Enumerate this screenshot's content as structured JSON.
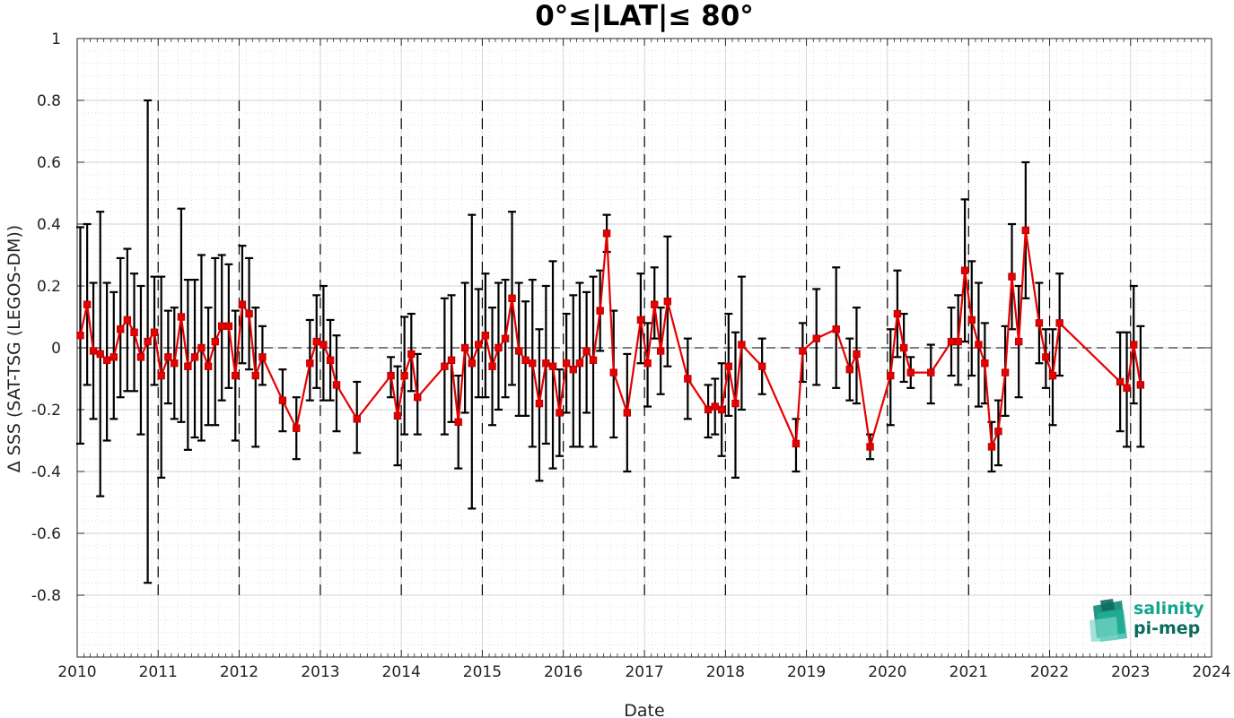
{
  "chart_data": {
    "type": "line",
    "title": "0°≤|LAT|≤ 80°",
    "xlabel": "Date",
    "ylabel": "Δ SSS (SAT-TSG (LEGOS-DM))",
    "xlim": [
      "2010-01-01",
      "2024-01-01"
    ],
    "ylim": [
      -1,
      1
    ],
    "x_ticks": [
      "2010",
      "2011",
      "2012",
      "2013",
      "2014",
      "2015",
      "2016",
      "2017",
      "2018",
      "2019",
      "2020",
      "2021",
      "2022",
      "2023",
      "2024"
    ],
    "y_ticks": [
      "-0.8",
      "-0.6",
      "-0.4",
      "-0.2",
      "0",
      "0.2",
      "0.4",
      "0.6",
      "0.8",
      "1"
    ],
    "grid": true,
    "reference_line_y": 0,
    "year_boundary_lines": true,
    "series": [
      {
        "color": "#e60000",
        "marker": "square",
        "points": [
          {
            "date": "2010-01-15",
            "y": 0.04,
            "lo": -0.31,
            "hi": 0.39
          },
          {
            "date": "2010-02-15",
            "y": 0.14,
            "lo": -0.12,
            "hi": 0.4
          },
          {
            "date": "2010-03-15",
            "y": -0.01,
            "lo": -0.23,
            "hi": 0.21
          },
          {
            "date": "2010-04-15",
            "y": -0.02,
            "lo": -0.48,
            "hi": 0.44
          },
          {
            "date": "2010-05-15",
            "y": -0.04,
            "lo": -0.3,
            "hi": 0.21
          },
          {
            "date": "2010-06-15",
            "y": -0.03,
            "lo": -0.23,
            "hi": 0.18
          },
          {
            "date": "2010-07-15",
            "y": 0.06,
            "lo": -0.16,
            "hi": 0.29
          },
          {
            "date": "2010-08-15",
            "y": 0.09,
            "lo": -0.14,
            "hi": 0.32
          },
          {
            "date": "2010-09-15",
            "y": 0.05,
            "lo": -0.14,
            "hi": 0.24
          },
          {
            "date": "2010-10-15",
            "y": -0.03,
            "lo": -0.28,
            "hi": 0.2
          },
          {
            "date": "2010-11-15",
            "y": 0.02,
            "lo": -0.76,
            "hi": 0.8
          },
          {
            "date": "2010-12-15",
            "y": 0.05,
            "lo": -0.12,
            "hi": 0.23
          },
          {
            "date": "2011-01-15",
            "y": -0.09,
            "lo": -0.42,
            "hi": 0.23
          },
          {
            "date": "2011-02-15",
            "y": -0.03,
            "lo": -0.18,
            "hi": 0.12
          },
          {
            "date": "2011-03-15",
            "y": -0.05,
            "lo": -0.23,
            "hi": 0.13
          },
          {
            "date": "2011-04-15",
            "y": 0.1,
            "lo": -0.24,
            "hi": 0.45
          },
          {
            "date": "2011-05-15",
            "y": -0.06,
            "lo": -0.33,
            "hi": 0.22
          },
          {
            "date": "2011-06-15",
            "y": -0.03,
            "lo": -0.29,
            "hi": 0.22
          },
          {
            "date": "2011-07-15",
            "y": 0.0,
            "lo": -0.3,
            "hi": 0.3
          },
          {
            "date": "2011-08-15",
            "y": -0.06,
            "lo": -0.25,
            "hi": 0.13
          },
          {
            "date": "2011-09-15",
            "y": 0.02,
            "lo": -0.25,
            "hi": 0.29
          },
          {
            "date": "2011-10-15",
            "y": 0.07,
            "lo": -0.17,
            "hi": 0.3
          },
          {
            "date": "2011-11-15",
            "y": 0.07,
            "lo": -0.13,
            "hi": 0.27
          },
          {
            "date": "2011-12-15",
            "y": -0.09,
            "lo": -0.3,
            "hi": 0.12
          },
          {
            "date": "2012-01-15",
            "y": 0.14,
            "lo": -0.05,
            "hi": 0.33
          },
          {
            "date": "2012-02-15",
            "y": 0.11,
            "lo": -0.07,
            "hi": 0.29
          },
          {
            "date": "2012-03-15",
            "y": -0.09,
            "lo": -0.32,
            "hi": 0.13
          },
          {
            "date": "2012-04-15",
            "y": -0.03,
            "lo": -0.12,
            "hi": 0.07
          },
          {
            "date": "2012-07-15",
            "y": -0.17,
            "lo": -0.27,
            "hi": -0.07
          },
          {
            "date": "2012-09-15",
            "y": -0.26,
            "lo": -0.36,
            "hi": -0.16
          },
          {
            "date": "2012-11-15",
            "y": -0.05,
            "lo": -0.17,
            "hi": 0.09
          },
          {
            "date": "2012-12-15",
            "y": 0.02,
            "lo": -0.13,
            "hi": 0.17
          },
          {
            "date": "2013-01-15",
            "y": 0.01,
            "lo": -0.17,
            "hi": 0.2
          },
          {
            "date": "2013-02-15",
            "y": -0.04,
            "lo": -0.17,
            "hi": 0.09
          },
          {
            "date": "2013-03-15",
            "y": -0.12,
            "lo": -0.27,
            "hi": 0.04
          },
          {
            "date": "2013-06-15",
            "y": -0.23,
            "lo": -0.34,
            "hi": -0.11
          },
          {
            "date": "2013-11-15",
            "y": -0.09,
            "lo": -0.16,
            "hi": -0.03
          },
          {
            "date": "2013-12-15",
            "y": -0.22,
            "lo": -0.38,
            "hi": -0.06
          },
          {
            "date": "2014-01-15",
            "y": -0.09,
            "lo": -0.28,
            "hi": 0.1
          },
          {
            "date": "2014-02-15",
            "y": -0.02,
            "lo": -0.14,
            "hi": 0.11
          },
          {
            "date": "2014-03-15",
            "y": -0.16,
            "lo": -0.28,
            "hi": -0.02
          },
          {
            "date": "2014-07-15",
            "y": -0.06,
            "lo": -0.28,
            "hi": 0.16
          },
          {
            "date": "2014-08-15",
            "y": -0.04,
            "lo": -0.24,
            "hi": 0.17
          },
          {
            "date": "2014-09-15",
            "y": -0.24,
            "lo": -0.39,
            "hi": -0.09
          },
          {
            "date": "2014-10-15",
            "y": 0.0,
            "lo": -0.21,
            "hi": 0.21
          },
          {
            "date": "2014-11-15",
            "y": -0.05,
            "lo": -0.52,
            "hi": 0.43
          },
          {
            "date": "2014-12-15",
            "y": 0.01,
            "lo": -0.16,
            "hi": 0.19
          },
          {
            "date": "2015-01-15",
            "y": 0.04,
            "lo": -0.16,
            "hi": 0.24
          },
          {
            "date": "2015-02-15",
            "y": -0.06,
            "lo": -0.25,
            "hi": 0.13
          },
          {
            "date": "2015-03-15",
            "y": 0.0,
            "lo": -0.2,
            "hi": 0.21
          },
          {
            "date": "2015-04-15",
            "y": 0.03,
            "lo": -0.16,
            "hi": 0.22
          },
          {
            "date": "2015-05-15",
            "y": 0.16,
            "lo": -0.12,
            "hi": 0.44
          },
          {
            "date": "2015-06-15",
            "y": -0.01,
            "lo": -0.22,
            "hi": 0.21
          },
          {
            "date": "2015-07-15",
            "y": -0.04,
            "lo": -0.22,
            "hi": 0.15
          },
          {
            "date": "2015-08-15",
            "y": -0.05,
            "lo": -0.32,
            "hi": 0.22
          },
          {
            "date": "2015-09-15",
            "y": -0.18,
            "lo": -0.43,
            "hi": 0.06
          },
          {
            "date": "2015-10-15",
            "y": -0.05,
            "lo": -0.31,
            "hi": 0.2
          },
          {
            "date": "2015-11-15",
            "y": -0.06,
            "lo": -0.39,
            "hi": 0.28
          },
          {
            "date": "2015-12-15",
            "y": -0.21,
            "lo": -0.35,
            "hi": -0.07
          },
          {
            "date": "2016-01-15",
            "y": -0.05,
            "lo": -0.21,
            "hi": 0.11
          },
          {
            "date": "2016-02-15",
            "y": -0.07,
            "lo": -0.32,
            "hi": 0.17
          },
          {
            "date": "2016-03-15",
            "y": -0.05,
            "lo": -0.32,
            "hi": 0.21
          },
          {
            "date": "2016-04-15",
            "y": -0.01,
            "lo": -0.21,
            "hi": 0.18
          },
          {
            "date": "2016-05-15",
            "y": -0.04,
            "lo": -0.32,
            "hi": 0.23
          },
          {
            "date": "2016-06-15",
            "y": 0.12,
            "lo": -0.01,
            "hi": 0.25
          },
          {
            "date": "2016-07-15",
            "y": 0.37,
            "lo": 0.31,
            "hi": 0.43
          },
          {
            "date": "2016-08-15",
            "y": -0.08,
            "lo": -0.29,
            "hi": 0.12
          },
          {
            "date": "2016-10-15",
            "y": -0.21,
            "lo": -0.4,
            "hi": -0.02
          },
          {
            "date": "2016-12-15",
            "y": 0.09,
            "lo": -0.05,
            "hi": 0.24
          },
          {
            "date": "2017-01-15",
            "y": -0.05,
            "lo": -0.19,
            "hi": 0.08
          },
          {
            "date": "2017-02-15",
            "y": 0.14,
            "lo": 0.03,
            "hi": 0.26
          },
          {
            "date": "2017-03-15",
            "y": -0.01,
            "lo": -0.15,
            "hi": 0.13
          },
          {
            "date": "2017-04-15",
            "y": 0.15,
            "lo": -0.06,
            "hi": 0.36
          },
          {
            "date": "2017-07-15",
            "y": -0.1,
            "lo": -0.23,
            "hi": 0.03
          },
          {
            "date": "2017-10-15",
            "y": -0.2,
            "lo": -0.29,
            "hi": -0.12
          },
          {
            "date": "2017-11-15",
            "y": -0.19,
            "lo": -0.28,
            "hi": -0.1
          },
          {
            "date": "2017-12-15",
            "y": -0.2,
            "lo": -0.35,
            "hi": -0.05
          },
          {
            "date": "2018-01-15",
            "y": -0.06,
            "lo": -0.22,
            "hi": 0.11
          },
          {
            "date": "2018-02-15",
            "y": -0.18,
            "lo": -0.42,
            "hi": 0.05
          },
          {
            "date": "2018-03-15",
            "y": 0.01,
            "lo": -0.2,
            "hi": 0.23
          },
          {
            "date": "2018-06-15",
            "y": -0.06,
            "lo": -0.15,
            "hi": 0.03
          },
          {
            "date": "2018-11-15",
            "y": -0.31,
            "lo": -0.4,
            "hi": -0.23
          },
          {
            "date": "2018-12-15",
            "y": -0.01,
            "lo": -0.11,
            "hi": 0.08
          },
          {
            "date": "2019-02-15",
            "y": 0.03,
            "lo": -0.12,
            "hi": 0.19
          },
          {
            "date": "2019-05-15",
            "y": 0.06,
            "lo": -0.13,
            "hi": 0.26
          },
          {
            "date": "2019-07-15",
            "y": -0.07,
            "lo": -0.17,
            "hi": 0.03
          },
          {
            "date": "2019-08-15",
            "y": -0.02,
            "lo": -0.18,
            "hi": 0.13
          },
          {
            "date": "2019-10-15",
            "y": -0.32,
            "lo": -0.36,
            "hi": -0.28
          },
          {
            "date": "2020-01-15",
            "y": -0.09,
            "lo": -0.25,
            "hi": 0.06
          },
          {
            "date": "2020-02-15",
            "y": 0.11,
            "lo": -0.03,
            "hi": 0.25
          },
          {
            "date": "2020-03-15",
            "y": 0.0,
            "lo": -0.11,
            "hi": 0.11
          },
          {
            "date": "2020-04-15",
            "y": -0.08,
            "lo": -0.13,
            "hi": -0.03
          },
          {
            "date": "2020-07-15",
            "y": -0.08,
            "lo": -0.18,
            "hi": 0.01
          },
          {
            "date": "2020-10-15",
            "y": 0.02,
            "lo": -0.09,
            "hi": 0.13
          },
          {
            "date": "2020-11-15",
            "y": 0.02,
            "lo": -0.12,
            "hi": 0.17
          },
          {
            "date": "2020-12-15",
            "y": 0.25,
            "lo": 0.02,
            "hi": 0.48
          },
          {
            "date": "2021-01-15",
            "y": 0.09,
            "lo": -0.09,
            "hi": 0.28
          },
          {
            "date": "2021-02-15",
            "y": 0.01,
            "lo": -0.19,
            "hi": 0.21
          },
          {
            "date": "2021-03-15",
            "y": -0.05,
            "lo": -0.18,
            "hi": 0.08
          },
          {
            "date": "2021-04-15",
            "y": -0.32,
            "lo": -0.4,
            "hi": -0.24
          },
          {
            "date": "2021-05-15",
            "y": -0.27,
            "lo": -0.38,
            "hi": -0.17
          },
          {
            "date": "2021-06-15",
            "y": -0.08,
            "lo": -0.22,
            "hi": 0.07
          },
          {
            "date": "2021-07-15",
            "y": 0.23,
            "lo": 0.06,
            "hi": 0.4
          },
          {
            "date": "2021-08-15",
            "y": 0.02,
            "lo": -0.16,
            "hi": 0.2
          },
          {
            "date": "2021-09-15",
            "y": 0.38,
            "lo": 0.16,
            "hi": 0.6
          },
          {
            "date": "2021-11-15",
            "y": 0.08,
            "lo": -0.05,
            "hi": 0.21
          },
          {
            "date": "2021-12-15",
            "y": -0.03,
            "lo": -0.13,
            "hi": 0.06
          },
          {
            "date": "2022-01-15",
            "y": -0.09,
            "lo": -0.25,
            "hi": 0.06
          },
          {
            "date": "2022-02-15",
            "y": 0.08,
            "lo": -0.09,
            "hi": 0.24
          },
          {
            "date": "2022-11-15",
            "y": -0.11,
            "lo": -0.27,
            "hi": 0.05
          },
          {
            "date": "2022-12-15",
            "y": -0.13,
            "lo": -0.32,
            "hi": 0.05
          },
          {
            "date": "2023-01-15",
            "y": 0.01,
            "lo": -0.18,
            "hi": 0.2
          },
          {
            "date": "2023-02-15",
            "y": -0.12,
            "lo": -0.32,
            "hi": 0.07
          }
        ]
      }
    ]
  },
  "logo": {
    "line1": "salinity",
    "line2": "pi-mep",
    "color1": "#15a58f",
    "color2": "#0b6b5e"
  }
}
